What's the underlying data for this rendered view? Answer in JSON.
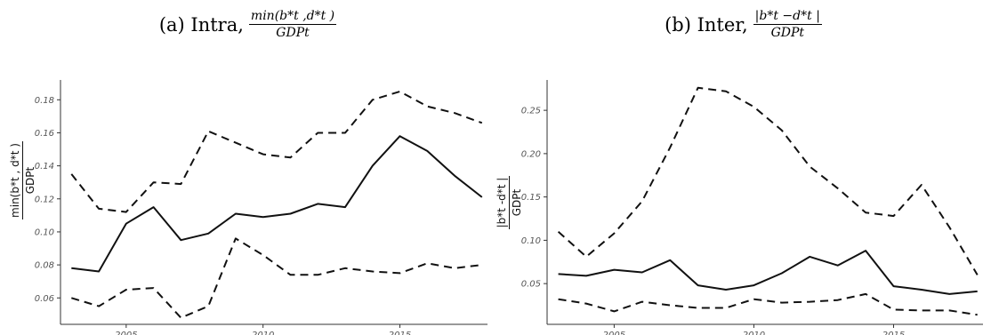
{
  "chart_data": [
    {
      "type": "line",
      "title_prefix": "(a) Intra,",
      "title_num": "min(b*t ,d*t )",
      "title_den": "GDPt",
      "ylabel_num": "min(b*t , d*t )",
      "ylabel_den": "GDPt",
      "x": [
        2003,
        2004,
        2005,
        2006,
        2007,
        2008,
        2009,
        2010,
        2011,
        2012,
        2013,
        2014,
        2015,
        2016,
        2017,
        2018
      ],
      "xlim": [
        2002.6,
        2018.2
      ],
      "xticks": [
        "2005",
        "2010",
        "2015"
      ],
      "xtick_values": [
        2005,
        2010,
        2015
      ],
      "ylim": [
        0.044,
        0.192
      ],
      "yticks": [
        "0.06",
        "0.08",
        "0.10",
        "0.12",
        "0.14",
        "0.16",
        "0.18"
      ],
      "ytick_values": [
        0.06,
        0.08,
        0.1,
        0.12,
        0.14,
        0.16,
        0.18
      ],
      "grid": false,
      "series": [
        {
          "style": "dashed",
          "values": [
            0.135,
            0.114,
            0.112,
            0.13,
            0.129,
            0.161,
            0.154,
            0.147,
            0.145,
            0.16,
            0.16,
            0.18,
            0.185,
            0.176,
            0.172,
            0.166
          ]
        },
        {
          "style": "solid",
          "values": [
            0.078,
            0.076,
            0.105,
            0.115,
            0.095,
            0.099,
            0.111,
            0.109,
            0.111,
            0.117,
            0.115,
            0.14,
            0.158,
            0.149,
            0.134,
            0.121
          ]
        },
        {
          "style": "dashed",
          "values": [
            0.06,
            0.055,
            0.065,
            0.066,
            0.048,
            0.055,
            0.096,
            0.086,
            0.074,
            0.074,
            0.078,
            0.076,
            0.075,
            0.081,
            0.078,
            0.08
          ]
        }
      ]
    },
    {
      "type": "line",
      "title_prefix": "(b) Inter,",
      "title_num": "|b*t −d*t |",
      "title_den": "GDPt",
      "ylabel_num": "|b*t -d*t |",
      "ylabel_den": "GDPt",
      "x": [
        2003,
        2004,
        2005,
        2006,
        2007,
        2008,
        2009,
        2010,
        2011,
        2012,
        2013,
        2014,
        2015,
        2016,
        2017,
        2018
      ],
      "xlim": [
        2002.6,
        2018.2
      ],
      "xticks": [
        "2005",
        "2010",
        "2015"
      ],
      "xtick_values": [
        2005,
        2010,
        2015
      ],
      "ylim": [
        0.003,
        0.285
      ],
      "yticks": [
        "0.05",
        "0.10",
        "0.15",
        "0.20",
        "0.25"
      ],
      "ytick_values": [
        0.05,
        0.1,
        0.15,
        0.2,
        0.25
      ],
      "grid": false,
      "series": [
        {
          "style": "dashed",
          "values": [
            0.11,
            0.081,
            0.108,
            0.145,
            0.207,
            0.276,
            0.272,
            0.254,
            0.227,
            0.185,
            0.16,
            0.132,
            0.128,
            0.164,
            0.115,
            0.06
          ]
        },
        {
          "style": "solid",
          "values": [
            0.061,
            0.059,
            0.066,
            0.063,
            0.077,
            0.048,
            0.043,
            0.048,
            0.062,
            0.081,
            0.071,
            0.088,
            0.047,
            0.043,
            0.038,
            0.041
          ]
        },
        {
          "style": "dashed",
          "values": [
            0.032,
            0.027,
            0.018,
            0.029,
            0.025,
            0.022,
            0.022,
            0.032,
            0.028,
            0.029,
            0.031,
            0.038,
            0.02,
            0.019,
            0.019,
            0.014
          ]
        }
      ]
    }
  ]
}
